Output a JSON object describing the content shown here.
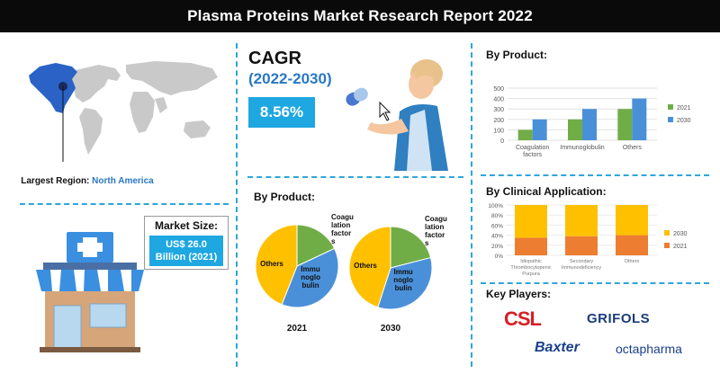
{
  "header": {
    "title": "Plasma Proteins Market Research Report  2022"
  },
  "region": {
    "label_prefix": "Largest Region:",
    "value": "North America"
  },
  "market": {
    "title": "Market Size:",
    "value_line1": "US$ 26.0",
    "value_line2": "Billion (2021)"
  },
  "cagr": {
    "title": "CAGR",
    "years": "(2022-2030)",
    "value": "8.56%"
  },
  "colors": {
    "accent": "#1ea7e1",
    "dark_blue": "#2a78c2",
    "green": "#70ad47",
    "blue": "#4a90d9",
    "yellow": "#ffc000",
    "orange": "#ed7d31"
  },
  "pies": {
    "title": "By Product:",
    "labels": {
      "others": "Others",
      "immuno": "Immu noglo bulin",
      "coag": "Coagu lation factor s"
    },
    "years": [
      "2021",
      "2030"
    ]
  },
  "by_product_bar_title": "By Product:",
  "by_clinical_title": "By Clinical Application:",
  "key_players": {
    "title": "Key Players:",
    "logos": [
      "CSL",
      "GRIFOLS",
      "Baxter",
      "octapharma"
    ]
  },
  "chart_data": [
    {
      "type": "bar",
      "title": "By Product:",
      "categories": [
        "Coagulation factors",
        "Immunoglobulin",
        "Others"
      ],
      "series": [
        {
          "name": "2021",
          "values": [
            100,
            200,
            300
          ],
          "color": "#70ad47"
        },
        {
          "name": "2030",
          "values": [
            200,
            300,
            400
          ],
          "color": "#4a90d9"
        }
      ],
      "ylim": [
        0,
        500
      ],
      "yticks": [
        "0",
        "100",
        "200",
        "300",
        "400",
        "500"
      ],
      "grid": true,
      "legend": "right"
    },
    {
      "type": "bar",
      "stacked": true,
      "percent": true,
      "title": "By Clinical Application:",
      "categories": [
        "Idiopathic Thrombocytopenic Purpura",
        "Secondary Immunodeficiency",
        "Others"
      ],
      "series": [
        {
          "name": "2021",
          "values": [
            35,
            38,
            40
          ],
          "color": "#ed7d31"
        },
        {
          "name": "2030",
          "values": [
            65,
            62,
            60
          ],
          "color": "#ffc000"
        }
      ],
      "ylim": [
        0,
        100
      ],
      "yticks": [
        "0%",
        "20%",
        "40%",
        "60%",
        "80%",
        "100%"
      ],
      "legend": "right"
    },
    {
      "type": "pie",
      "title": "2021",
      "slices": [
        {
          "name": "Coagulation factors",
          "value": 18,
          "color": "#70ad47"
        },
        {
          "name": "Immunoglobulin",
          "value": 38,
          "color": "#4a90d9"
        },
        {
          "name": "Others",
          "value": 44,
          "color": "#ffc000"
        }
      ]
    },
    {
      "type": "pie",
      "title": "2030",
      "slices": [
        {
          "name": "Coagulation factors",
          "value": 21,
          "color": "#70ad47"
        },
        {
          "name": "Immunoglobulin",
          "value": 34,
          "color": "#4a90d9"
        },
        {
          "name": "Others",
          "value": 45,
          "color": "#ffc000"
        }
      ]
    }
  ]
}
